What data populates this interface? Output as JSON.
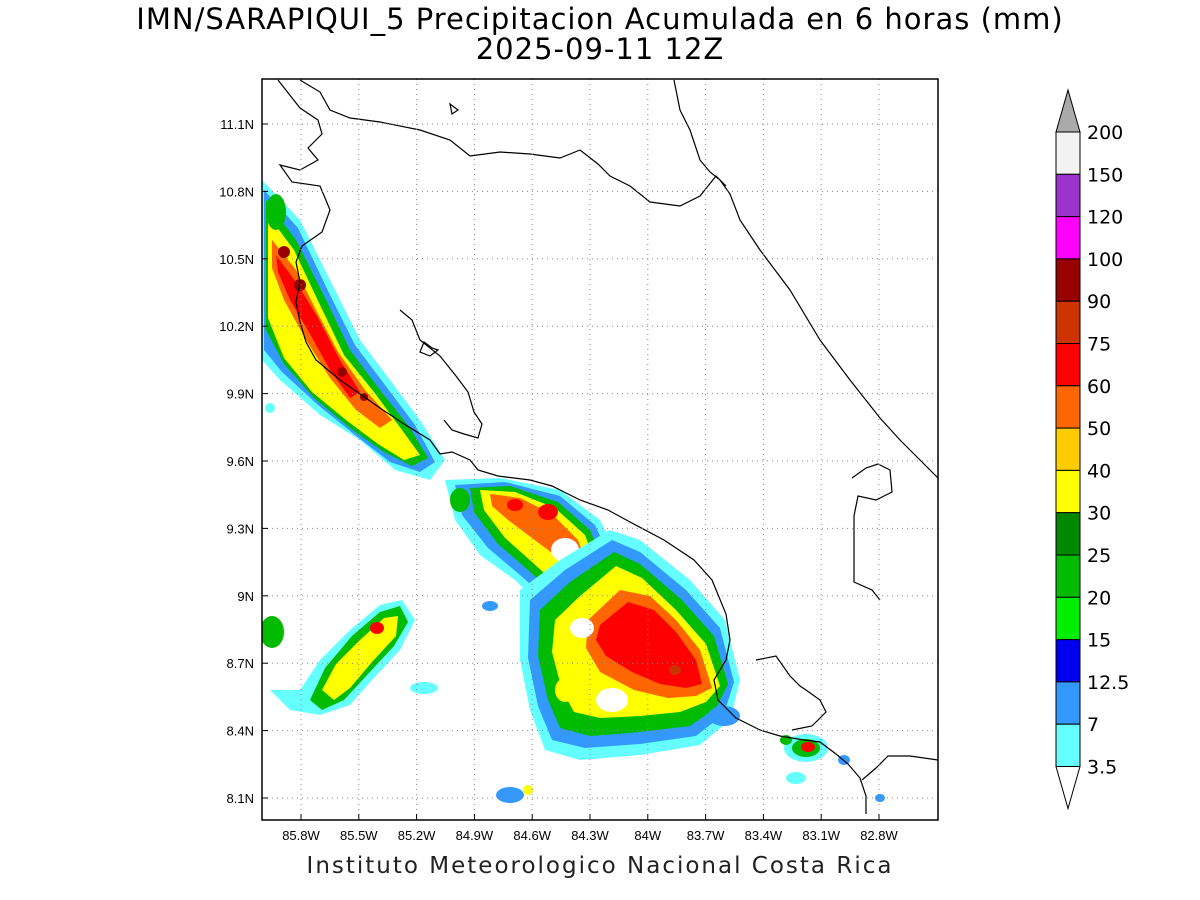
{
  "title": "IMN/SARAPIQUI_5 Precipitacion Acumulada en 6 horas (mm)",
  "subtitle": "2025-09-11 12Z",
  "footer": "Instituto Meteorologico Nacional Costa Rica",
  "map_data": {
    "lon_range": [
      -86.07,
      -82.48
    ],
    "lat_range": [
      8.02,
      11.32
    ],
    "x_ticks": [
      "85.8W",
      "85.5W",
      "85.2W",
      "84.9W",
      "84.6W",
      "84.3W",
      "84W",
      "83.7W",
      "83.4W",
      "83.1W",
      "82.8W"
    ],
    "y_ticks": [
      "11.1N",
      "10.8N",
      "10.5N",
      "10.2N",
      "9.9N",
      "9.6N",
      "9.3N",
      "9N",
      "8.7N",
      "8.4N",
      "8.1N"
    ],
    "grid": "dotted"
  },
  "colorbar": {
    "levels": [
      "200",
      "150",
      "120",
      "100",
      "90",
      "75",
      "60",
      "50",
      "40",
      "30",
      "25",
      "20",
      "15",
      "12.5",
      "7",
      "3.5"
    ],
    "colors": [
      "#f2f2f2",
      "#9933cc",
      "#ff00ff",
      "#990000",
      "#cc3300",
      "#ff0000",
      "#ff6600",
      "#ffcc00",
      "#ffff00",
      "#008800",
      "#00bb00",
      "#00ee00",
      "#0000ee",
      "#3399ff",
      "#66ffff"
    ],
    "top_arrow_color": "#aaaaaa",
    "bottom_arrow_color": "#ffffff"
  }
}
